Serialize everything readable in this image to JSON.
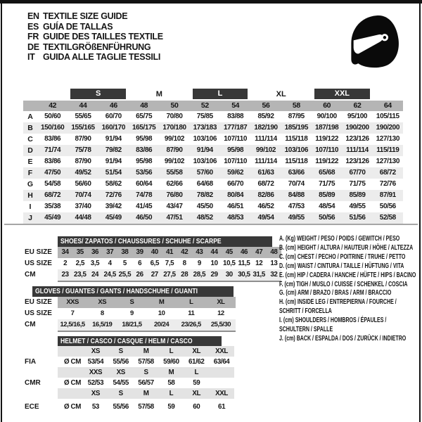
{
  "header": {
    "languages": [
      {
        "code": "EN",
        "text": "TEXTILE SIZE GUIDE"
      },
      {
        "code": "ES",
        "text": "GUÍA DE TALLAS"
      },
      {
        "code": "FR",
        "text": "GUIDE DES TAILLES TEXTILE"
      },
      {
        "code": "DE",
        "text": "TEXTILGRÖßENFÜHRUNG"
      },
      {
        "code": "IT",
        "text": "GUIDA ALLE TAGLIE TESSILI"
      }
    ],
    "helmet_icon": "full-face-racing-helmet"
  },
  "colors": {
    "bar_dark": "#383838",
    "header_gray": "#b5b5b5",
    "row_alt": "#ececec",
    "helmet_row_gray": "#e3e3e3",
    "frame_black": "#121212"
  },
  "size_table": {
    "size_groups": [
      {
        "label": "S",
        "bar": true
      },
      {
        "label": "M",
        "bar": false
      },
      {
        "label": "L",
        "bar": true
      },
      {
        "label": "XL",
        "bar": false
      },
      {
        "label": "XXL",
        "bar": true
      }
    ],
    "columns": [
      "42",
      "44",
      "46",
      "48",
      "50",
      "52",
      "54",
      "56",
      "58",
      "60",
      "62",
      "64"
    ],
    "rows": [
      {
        "letter": "A",
        "values": [
          "50/60",
          "55/65",
          "60/70",
          "65/75",
          "70/80",
          "75/85",
          "83/88",
          "85/92",
          "87/95",
          "90/100",
          "95/100",
          "105/115"
        ]
      },
      {
        "letter": "B",
        "values": [
          "150/160",
          "155/165",
          "160/170",
          "165/175",
          "170/180",
          "173/183",
          "177/187",
          "182/190",
          "185/195",
          "187/198",
          "190/200",
          "190/200"
        ]
      },
      {
        "letter": "C",
        "values": [
          "83/86",
          "87/90",
          "91/94",
          "95/98",
          "99/102",
          "103/106",
          "107/110",
          "111/114",
          "115/118",
          "119/122",
          "123/126",
          "127/130"
        ]
      },
      {
        "letter": "D",
        "values": [
          "71/74",
          "75/78",
          "79/82",
          "83/86",
          "87/90",
          "91/94",
          "95/98",
          "99/102",
          "103/106",
          "107/110",
          "111/114",
          "115/119"
        ]
      },
      {
        "letter": "E",
        "values": [
          "83/86",
          "87/90",
          "91/94",
          "95/98",
          "99/102",
          "103/106",
          "107/110",
          "111/114",
          "115/118",
          "119/122",
          "123/126",
          "127/130"
        ]
      },
      {
        "letter": "F",
        "values": [
          "47/50",
          "49/52",
          "51/54",
          "53/56",
          "55/58",
          "57/60",
          "59/62",
          "61/63",
          "63/66",
          "65/68",
          "67/70",
          "68/72"
        ]
      },
      {
        "letter": "G",
        "values": [
          "54/58",
          "56/60",
          "58/62",
          "60/64",
          "62/66",
          "64/68",
          "66/70",
          "68/72",
          "70/74",
          "71/75",
          "71/75",
          "72/76"
        ]
      },
      {
        "letter": "H",
        "values": [
          "68/72",
          "70/74",
          "72/76",
          "74/78",
          "76/80",
          "78/82",
          "80/84",
          "82/86",
          "84/88",
          "85/89",
          "85/89",
          "87/91"
        ]
      },
      {
        "letter": "I",
        "values": [
          "35/38",
          "37/40",
          "39/42",
          "41/45",
          "43/47",
          "45/50",
          "46/51",
          "46/52",
          "47/53",
          "48/54",
          "49/55",
          "50/56"
        ]
      },
      {
        "letter": "J",
        "values": [
          "45/49",
          "44/48",
          "45/49",
          "46/50",
          "47/51",
          "48/52",
          "48/53",
          "49/54",
          "49/55",
          "50/56",
          "51/56",
          "52/58"
        ]
      }
    ]
  },
  "shoes_table": {
    "title": "SHOES/ ZAPATOS / CHAUSSURES / SCHUHE / SCARPE",
    "rows": [
      {
        "label": "EU SIZE",
        "shade": "dark",
        "values": [
          "34",
          "35",
          "36",
          "37",
          "38",
          "39",
          "40",
          "41",
          "42",
          "43",
          "44",
          "45",
          "46",
          "47",
          "48"
        ]
      },
      {
        "label": "US SIZE",
        "shade": "white",
        "values": [
          "2",
          "2,5",
          "3,5",
          "4",
          "5",
          "6",
          "6,5",
          "7,5",
          "8",
          "9",
          "10",
          "10,5",
          "11,5",
          "12",
          "13"
        ]
      },
      {
        "label": "CM",
        "shade": "light",
        "values": [
          "23",
          "23,5",
          "24",
          "24,5",
          "25,5",
          "26",
          "27",
          "27,5",
          "28",
          "28,5",
          "29",
          "30",
          "30,5",
          "31,5",
          "32"
        ]
      }
    ]
  },
  "gloves_table": {
    "title": "GLOVES / GUANTES / GANTS / HANDSCHUHE / GUANTI",
    "rows": [
      {
        "label": "EU SIZE",
        "shade": "dark",
        "values": [
          "XXS",
          "XS",
          "S",
          "M",
          "L",
          "XL"
        ]
      },
      {
        "label": "US SIZE",
        "shade": "white",
        "values": [
          "7",
          "8",
          "9",
          "10",
          "11",
          "12"
        ]
      },
      {
        "label": "CM",
        "shade": "light",
        "values": [
          "12,5/16,5",
          "16,5/19",
          "18/21,5",
          "20/24",
          "23/26,5",
          "25,5/30"
        ]
      }
    ]
  },
  "helmet_table": {
    "title": "HELMET / CASCO / CASQUE / HELM / CASCO",
    "unit_label": "Ø CM",
    "sections": [
      {
        "label": "FIA",
        "sizes": [
          "XS",
          "S",
          "M",
          "L",
          "XL",
          "XXL"
        ],
        "values": [
          "53/54",
          "55/56",
          "57/58",
          "59/60",
          "61/62",
          "63/64"
        ]
      },
      {
        "label": "CMR",
        "sizes": [
          "XXS",
          "XS",
          "S",
          "M",
          "L",
          ""
        ],
        "values": [
          "52/53",
          "54/55",
          "56/57",
          "58",
          "59",
          ""
        ]
      },
      {
        "label": "ECE",
        "sizes": [
          "XS",
          "S",
          "M",
          "L",
          "XL",
          "XXL"
        ],
        "values": [
          "53",
          "55/56",
          "57/58",
          "59",
          "60",
          "61"
        ]
      }
    ]
  },
  "legend": {
    "lines": [
      "A. (Kg) WEIGHT / PESO / POIDS / GEWITCH / PESO",
      "B. (cm) HEIGHT / ALTURA / HAUTEUR / HÖHE / ALTEZZA",
      "C. (cm) CHEST / PECHO / POITRINE / TRUHE / PETTO",
      "D. (cm) WAIST / CINTURA / TAILLE / HÜFTUNG / VITA",
      "E. (cm) HIP / CADERA / HANCHE / HÜFTE / HIPS / BACINO",
      "F. (cm) TIGH / MUSLO / CUISSE / SCHENKEL / COSCIA",
      "G. (cm) ARM / BRAZO / BRAS / ARM / BRACCIO",
      "H. (cm) INSIDE LEG / ENTREPIERNA / FOURCHE /",
      "SCHRITT / FORCELLA",
      "I. (cm) SHOULDERS / HOMBROS / ÉPAULES /",
      "SCHULTERN / SPALLE",
      "J. (cm) BACK / ESPALDA / DOS / ZURÜCK / INDIETRO"
    ]
  }
}
